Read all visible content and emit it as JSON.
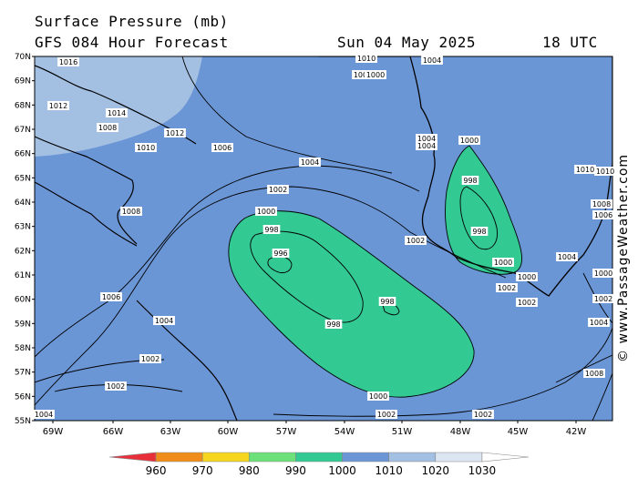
{
  "header": {
    "title": "Surface Pressure (mb)",
    "model": "GFS 084 Hour Forecast",
    "date": "Sun 04 May 2025",
    "time": "18 UTC"
  },
  "credit": "© www.PassageWeather.com",
  "map": {
    "lat_labels": [
      "70N",
      "69N",
      "68N",
      "67N",
      "66N",
      "65N",
      "64N",
      "63N",
      "62N",
      "61N",
      "60N",
      "59N",
      "58N",
      "57N",
      "56N",
      "55N"
    ],
    "lon_labels": [
      "69W",
      "66W",
      "63W",
      "60W",
      "57W",
      "54W",
      "51W",
      "48W",
      "45W",
      "42W"
    ],
    "contour_labels": [
      {
        "text": "1016"
      },
      {
        "text": "1012"
      },
      {
        "text": "1014"
      },
      {
        "text": "1008"
      },
      {
        "text": "1012"
      },
      {
        "text": "1010"
      },
      {
        "text": "1006"
      },
      {
        "text": "1004"
      },
      {
        "text": "1002"
      },
      {
        "text": "1000"
      },
      {
        "text": "998"
      },
      {
        "text": "996"
      },
      {
        "text": "998"
      },
      {
        "text": "998"
      },
      {
        "text": "1008"
      },
      {
        "text": "1006"
      },
      {
        "text": "1004"
      },
      {
        "text": "1002"
      },
      {
        "text": "1002"
      },
      {
        "text": "1004"
      },
      {
        "text": "1000"
      },
      {
        "text": "1004"
      },
      {
        "text": "1004"
      },
      {
        "text": "1002"
      },
      {
        "text": "1010"
      },
      {
        "text": "1004"
      },
      {
        "text": "1000"
      },
      {
        "text": "998"
      },
      {
        "text": "998"
      },
      {
        "text": "1002"
      },
      {
        "text": "1000"
      },
      {
        "text": "1000"
      },
      {
        "text": "1002"
      },
      {
        "text": "1002"
      },
      {
        "text": "1004"
      },
      {
        "text": "1000"
      },
      {
        "text": "1002"
      },
      {
        "text": "1004"
      },
      {
        "text": "1008"
      },
      {
        "text": "1008"
      },
      {
        "text": "1006"
      },
      {
        "text": "1010"
      },
      {
        "text": "1010"
      },
      {
        "text": "1000"
      },
      {
        "text": "1002"
      },
      {
        "text": "1004"
      }
    ]
  },
  "colorbar": {
    "ticks": [
      "960",
      "970",
      "980",
      "990",
      "1000",
      "1010",
      "1020",
      "1030"
    ],
    "colors": [
      "#e8303a",
      "#f08c1a",
      "#f5d51e",
      "#6de07a",
      "#33c993",
      "#6b96d6",
      "#a3bfe2",
      "#dce6f3",
      "#ffffff"
    ]
  }
}
